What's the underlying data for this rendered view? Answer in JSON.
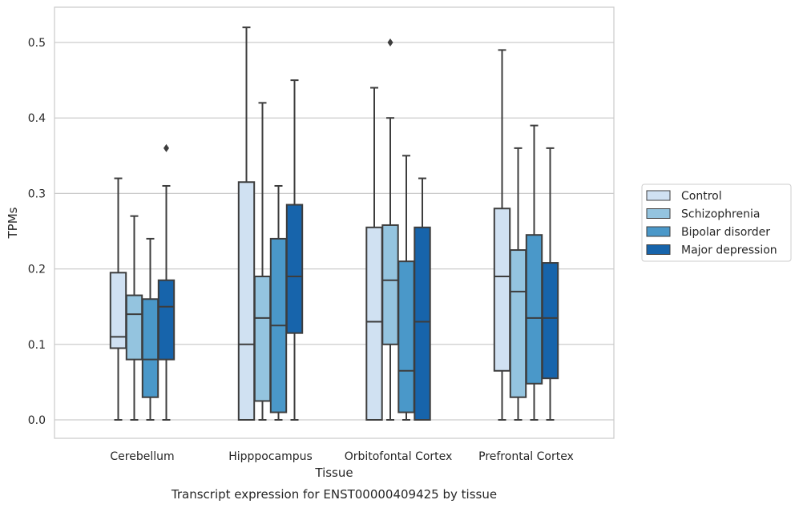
{
  "chart_data": {
    "type": "boxplot",
    "title": "Transcript expression for ENST00000409425 by tissue",
    "xlabel": "Tissue",
    "ylabel": "TPMs",
    "ylim": [
      -0.025,
      0.55
    ],
    "yticks": [
      "0.0",
      "0.1",
      "0.2",
      "0.3",
      "0.4",
      "0.5"
    ],
    "categories": [
      "Cerebellum",
      "Hipppocampus",
      "Orbitofontal Cortex",
      "Prefrontal Cortex"
    ],
    "grid": true,
    "legend_position": "right",
    "series": [
      {
        "name": "Control",
        "color": "#d0e1f2",
        "boxes": [
          {
            "whisker_low": 0.0,
            "q1": 0.095,
            "median": 0.11,
            "q3": 0.195,
            "whisker_high": 0.32,
            "outliers": []
          },
          {
            "whisker_low": 0.0,
            "q1": 0.0,
            "median": 0.1,
            "q3": 0.315,
            "whisker_high": 0.52,
            "outliers": []
          },
          {
            "whisker_low": 0.0,
            "q1": 0.0,
            "median": 0.13,
            "q3": 0.255,
            "whisker_high": 0.44,
            "outliers": []
          },
          {
            "whisker_low": 0.0,
            "q1": 0.065,
            "median": 0.19,
            "q3": 0.28,
            "whisker_high": 0.49,
            "outliers": []
          }
        ]
      },
      {
        "name": "Schizophrenia",
        "color": "#94c4df",
        "boxes": [
          {
            "whisker_low": 0.0,
            "q1": 0.08,
            "median": 0.14,
            "q3": 0.165,
            "whisker_high": 0.27,
            "outliers": []
          },
          {
            "whisker_low": 0.0,
            "q1": 0.025,
            "median": 0.135,
            "q3": 0.19,
            "whisker_high": 0.42,
            "outliers": []
          },
          {
            "whisker_low": 0.0,
            "q1": 0.1,
            "median": 0.185,
            "q3": 0.258,
            "whisker_high": 0.4,
            "outliers": [
              0.5
            ]
          },
          {
            "whisker_low": 0.0,
            "q1": 0.03,
            "median": 0.17,
            "q3": 0.225,
            "whisker_high": 0.36,
            "outliers": []
          }
        ]
      },
      {
        "name": "Bipolar disorder",
        "color": "#4a98c9",
        "boxes": [
          {
            "whisker_low": 0.0,
            "q1": 0.03,
            "median": 0.08,
            "q3": 0.16,
            "whisker_high": 0.24,
            "outliers": []
          },
          {
            "whisker_low": 0.0,
            "q1": 0.01,
            "median": 0.125,
            "q3": 0.24,
            "whisker_high": 0.31,
            "outliers": []
          },
          {
            "whisker_low": 0.0,
            "q1": 0.01,
            "median": 0.065,
            "q3": 0.21,
            "whisker_high": 0.35,
            "outliers": []
          },
          {
            "whisker_low": 0.0,
            "q1": 0.048,
            "median": 0.135,
            "q3": 0.245,
            "whisker_high": 0.39,
            "outliers": []
          }
        ]
      },
      {
        "name": "Major depression",
        "color": "#1764ab",
        "boxes": [
          {
            "whisker_low": 0.0,
            "q1": 0.08,
            "median": 0.15,
            "q3": 0.185,
            "whisker_high": 0.31,
            "outliers": [
              0.36
            ]
          },
          {
            "whisker_low": 0.0,
            "q1": 0.115,
            "median": 0.19,
            "q3": 0.285,
            "whisker_high": 0.45,
            "outliers": []
          },
          {
            "whisker_low": 0.0,
            "q1": 0.0,
            "median": 0.13,
            "q3": 0.255,
            "whisker_high": 0.32,
            "outliers": []
          },
          {
            "whisker_low": 0.0,
            "q1": 0.055,
            "median": 0.135,
            "q3": 0.208,
            "whisker_high": 0.36,
            "outliers": []
          }
        ]
      }
    ]
  }
}
